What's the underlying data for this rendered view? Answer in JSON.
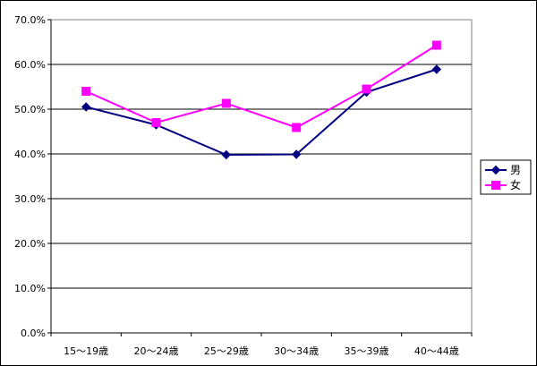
{
  "chart_data": {
    "type": "line",
    "categories": [
      "15～19歳",
      "20～24歳",
      "25～29歳",
      "30～34歳",
      "35～39歳",
      "40～44歳"
    ],
    "series": [
      {
        "name": "男",
        "values": [
          50.5,
          46.5,
          39.8,
          39.9,
          53.8,
          58.9
        ],
        "color": "#000080",
        "marker": "diamond"
      },
      {
        "name": "女",
        "values": [
          54.0,
          47.0,
          51.3,
          45.9,
          54.5,
          64.3
        ],
        "color": "#FF00FF",
        "marker": "square"
      }
    ],
    "y_ticks": [
      "0.0%",
      "10.0%",
      "20.0%",
      "30.0%",
      "40.0%",
      "50.0%",
      "60.0%",
      "70.0%"
    ],
    "ylim": [
      0,
      70
    ],
    "y_tick_step": 10,
    "grid": true,
    "legend_position": "right",
    "title": "",
    "xlabel": "",
    "ylabel": ""
  }
}
